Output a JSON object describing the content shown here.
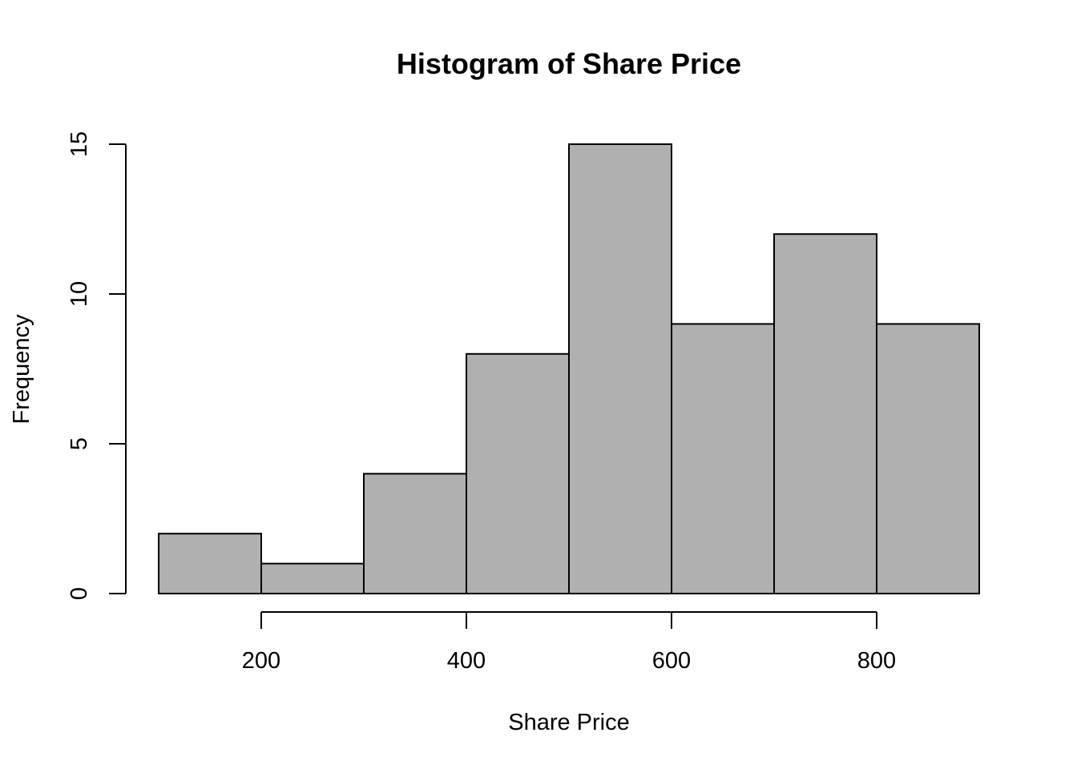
{
  "chart_data": {
    "type": "bar",
    "title": "Histogram of Share Price",
    "xlabel": "Share Price",
    "ylabel": "Frequency",
    "bins": [
      {
        "start": 100,
        "end": 200,
        "count": 2
      },
      {
        "start": 200,
        "end": 300,
        "count": 1
      },
      {
        "start": 300,
        "end": 400,
        "count": 4
      },
      {
        "start": 400,
        "end": 500,
        "count": 8
      },
      {
        "start": 500,
        "end": 600,
        "count": 15
      },
      {
        "start": 600,
        "end": 700,
        "count": 9
      },
      {
        "start": 700,
        "end": 800,
        "count": 12
      },
      {
        "start": 800,
        "end": 900,
        "count": 9
      }
    ],
    "x_ticks": [
      200,
      400,
      600,
      800
    ],
    "y_ticks": [
      0,
      5,
      10,
      15
    ],
    "xlim": [
      100,
      900
    ],
    "ylim": [
      0,
      15
    ],
    "grid": false,
    "legend": "none",
    "bar_color": "#b0b0b0",
    "edge_color": "#000000"
  }
}
